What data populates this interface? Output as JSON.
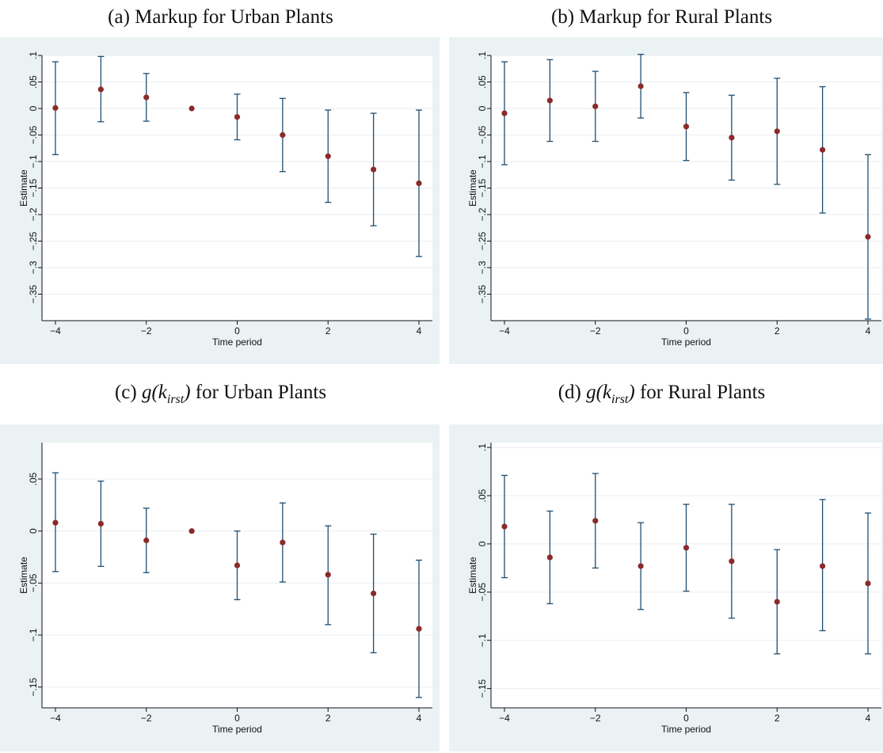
{
  "captions": {
    "a": {
      "prefix": "(a) ",
      "text": "Markup for Urban Plants"
    },
    "b": {
      "prefix": "(b) ",
      "text": "Markup for Rural Plants"
    },
    "c": {
      "prefix": "(c) ",
      "math_base": "g(k",
      "math_sub": "irst",
      "math_close": ")",
      "text": " for Urban Plants"
    },
    "d": {
      "prefix": "(d) ",
      "math_base": "g(k",
      "math_sub": "irst",
      "math_close": ")",
      "text": " for Rural Plants"
    }
  },
  "colors": {
    "panel_background": "#eaf2f3",
    "plot_background": "#ffffff",
    "gridline": "#e8eef0",
    "error_bar": "#1f4e70",
    "point": "#8c2a2a",
    "axis": "#111111"
  },
  "chart_data": [
    {
      "id": "a",
      "type": "scatter",
      "subtype": "point-estimate-with-error-bars",
      "xlabel": "Time period",
      "ylabel": "Estimate",
      "x_ticks": [
        -4,
        -2,
        0,
        2,
        4
      ],
      "x_tick_labels": [
        "−4",
        "−2",
        "0",
        "2",
        "4"
      ],
      "xlim": [
        -4,
        4
      ],
      "ylim": [
        -0.4,
        0.1
      ],
      "y_ticks": [
        0.1,
        0.05,
        0,
        -0.05,
        -0.1,
        -0.15,
        -0.2,
        -0.25,
        -0.3,
        -0.35
      ],
      "y_tick_labels": [
        ".1",
        ".05",
        "0",
        "−.05",
        "−.1",
        "−.15",
        "−.2",
        "−.25",
        "−.3",
        "−.35"
      ],
      "grid": true,
      "points": [
        {
          "x": -4,
          "y": 0.001,
          "lo": -0.087,
          "hi": 0.088
        },
        {
          "x": -3,
          "y": 0.036,
          "lo": -0.025,
          "hi": 0.098
        },
        {
          "x": -2,
          "y": 0.021,
          "lo": -0.024,
          "hi": 0.066
        },
        {
          "x": -1,
          "y": 0.0,
          "lo": null,
          "hi": null
        },
        {
          "x": 0,
          "y": -0.016,
          "lo": -0.059,
          "hi": 0.027
        },
        {
          "x": 1,
          "y": -0.05,
          "lo": -0.119,
          "hi": 0.019
        },
        {
          "x": 2,
          "y": -0.09,
          "lo": -0.177,
          "hi": -0.003
        },
        {
          "x": 3,
          "y": -0.115,
          "lo": -0.221,
          "hi": -0.009
        },
        {
          "x": 4,
          "y": -0.141,
          "lo": -0.279,
          "hi": -0.003
        }
      ]
    },
    {
      "id": "b",
      "type": "scatter",
      "subtype": "point-estimate-with-error-bars",
      "xlabel": "Time period",
      "ylabel": "Estimate",
      "x_ticks": [
        -4,
        -2,
        0,
        2,
        4
      ],
      "x_tick_labels": [
        "−4",
        "−2",
        "0",
        "2",
        "4"
      ],
      "xlim": [
        -4,
        4
      ],
      "ylim": [
        -0.4,
        0.1
      ],
      "y_ticks": [
        0.1,
        0.05,
        0,
        -0.05,
        -0.1,
        -0.15,
        -0.2,
        -0.25,
        -0.3,
        -0.35
      ],
      "y_tick_labels": [
        ".1",
        ".05",
        "0",
        "−.05",
        "−.1",
        "−.15",
        "−.2",
        "−.25",
        "−.3",
        "−.35"
      ],
      "grid": true,
      "points": [
        {
          "x": -4,
          "y": -0.009,
          "lo": -0.106,
          "hi": 0.088
        },
        {
          "x": -3,
          "y": 0.015,
          "lo": -0.062,
          "hi": 0.092
        },
        {
          "x": -2,
          "y": 0.004,
          "lo": -0.062,
          "hi": 0.07
        },
        {
          "x": -1,
          "y": 0.042,
          "lo": -0.018,
          "hi": 0.102
        },
        {
          "x": 0,
          "y": -0.034,
          "lo": -0.098,
          "hi": 0.03
        },
        {
          "x": 1,
          "y": -0.055,
          "lo": -0.135,
          "hi": 0.025
        },
        {
          "x": 2,
          "y": -0.043,
          "lo": -0.143,
          "hi": 0.057
        },
        {
          "x": 3,
          "y": -0.078,
          "lo": -0.197,
          "hi": 0.041
        },
        {
          "x": 4,
          "y": -0.242,
          "lo": -0.397,
          "hi": -0.087
        }
      ]
    },
    {
      "id": "c",
      "type": "scatter",
      "subtype": "point-estimate-with-error-bars",
      "xlabel": "Time period",
      "ylabel": "Estimate",
      "x_ticks": [
        -4,
        -2,
        0,
        2,
        4
      ],
      "x_tick_labels": [
        "−4",
        "−2",
        "0",
        "2",
        "4"
      ],
      "xlim": [
        -4,
        4
      ],
      "ylim": [
        -0.17,
        0.085
      ],
      "y_ticks": [
        0.05,
        0,
        -0.05,
        -0.1,
        -0.15
      ],
      "y_tick_labels": [
        ".05",
        "0",
        "−.05",
        "−.1",
        "−.15"
      ],
      "grid": true,
      "points": [
        {
          "x": -4,
          "y": 0.008,
          "lo": -0.039,
          "hi": 0.056
        },
        {
          "x": -3,
          "y": 0.007,
          "lo": -0.034,
          "hi": 0.048
        },
        {
          "x": -2,
          "y": -0.009,
          "lo": -0.04,
          "hi": 0.022
        },
        {
          "x": -1,
          "y": 0.0,
          "lo": null,
          "hi": null
        },
        {
          "x": 0,
          "y": -0.033,
          "lo": -0.066,
          "hi": 0.0
        },
        {
          "x": 1,
          "y": -0.011,
          "lo": -0.049,
          "hi": 0.027
        },
        {
          "x": 2,
          "y": -0.042,
          "lo": -0.09,
          "hi": 0.005
        },
        {
          "x": 3,
          "y": -0.06,
          "lo": -0.117,
          "hi": -0.003
        },
        {
          "x": 4,
          "y": -0.094,
          "lo": -0.16,
          "hi": -0.028
        }
      ]
    },
    {
      "id": "d",
      "type": "scatter",
      "subtype": "point-estimate-with-error-bars",
      "xlabel": "Time period",
      "ylabel": "Estimate",
      "x_ticks": [
        -4,
        -2,
        0,
        2,
        4
      ],
      "x_tick_labels": [
        "−4",
        "−2",
        "0",
        "2",
        "4"
      ],
      "xlim": [
        -4,
        4
      ],
      "ylim": [
        -0.17,
        0.105
      ],
      "y_ticks": [
        0.1,
        0.05,
        0,
        -0.05,
        -0.1,
        -0.15
      ],
      "y_tick_labels": [
        ".1",
        ".05",
        "0",
        "−.05",
        "−.1",
        "−.15"
      ],
      "grid": true,
      "points": [
        {
          "x": -4,
          "y": 0.018,
          "lo": -0.035,
          "hi": 0.071
        },
        {
          "x": -3,
          "y": -0.014,
          "lo": -0.062,
          "hi": 0.034
        },
        {
          "x": -2,
          "y": 0.024,
          "lo": -0.025,
          "hi": 0.073
        },
        {
          "x": -1,
          "y": -0.023,
          "lo": -0.068,
          "hi": 0.022
        },
        {
          "x": 0,
          "y": -0.004,
          "lo": -0.049,
          "hi": 0.041
        },
        {
          "x": 1,
          "y": -0.018,
          "lo": -0.077,
          "hi": 0.041
        },
        {
          "x": 2,
          "y": -0.06,
          "lo": -0.114,
          "hi": -0.006
        },
        {
          "x": 3,
          "y": -0.023,
          "lo": -0.09,
          "hi": 0.046
        },
        {
          "x": 4,
          "y": -0.041,
          "lo": -0.114,
          "hi": 0.032
        }
      ]
    }
  ]
}
